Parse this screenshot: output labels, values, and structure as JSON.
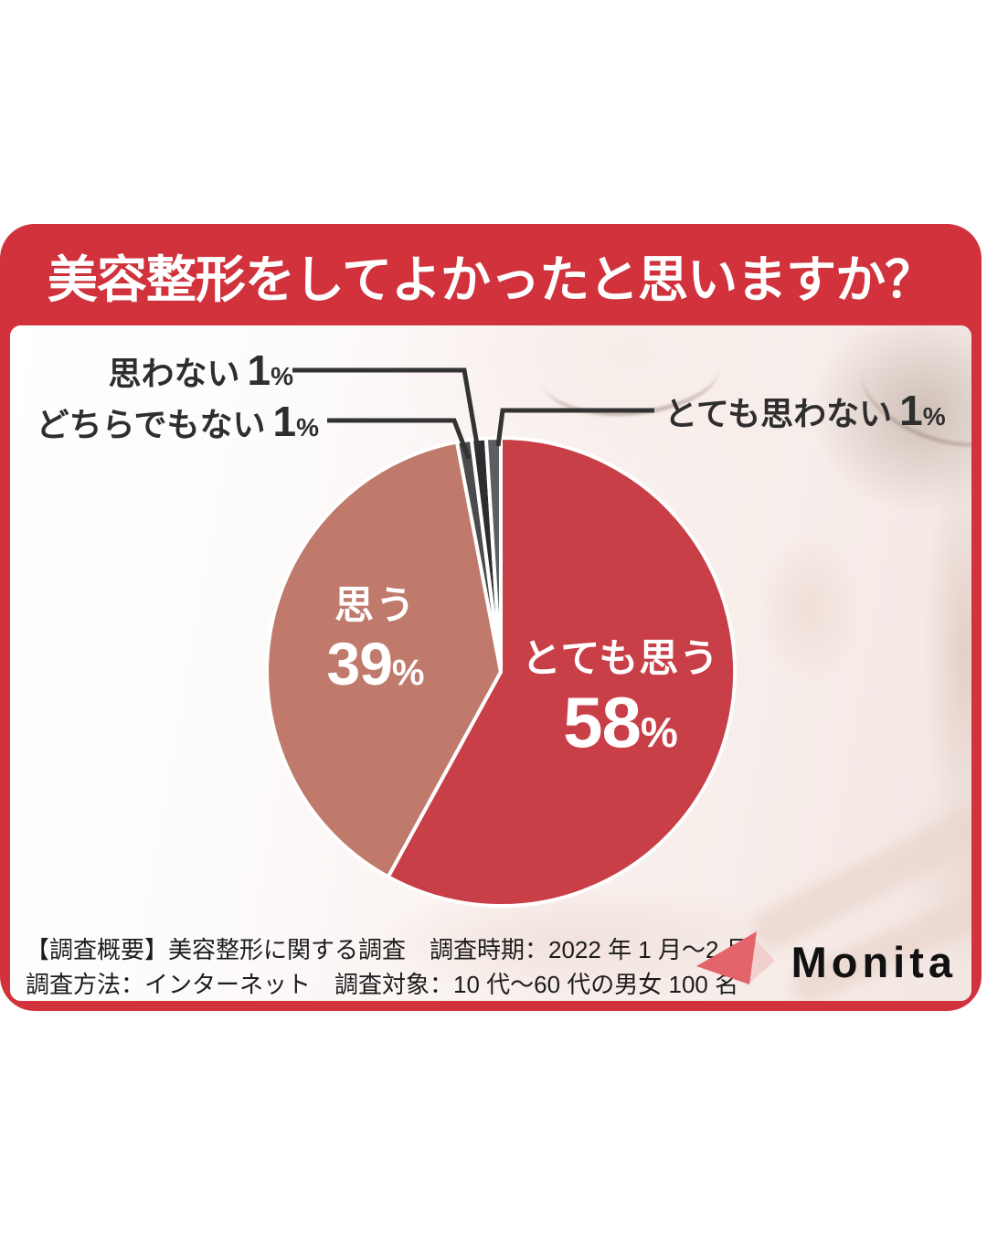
{
  "page_title": "美容整形をしてよかったと思いますか？",
  "chart_data": {
    "type": "pie",
    "title": "美容整形をしてよかったと思いますか？",
    "unit": "%",
    "rotation": "clockwise-from-top",
    "percent_sign": "%",
    "slices": [
      {
        "label": "とても思う",
        "value": 58,
        "color": "#c93f47",
        "label_style": "on-slice-white"
      },
      {
        "label": "思う",
        "value": 39,
        "color": "#bf7a6b",
        "label_style": "on-slice-white"
      },
      {
        "label": "どちらでもない",
        "value": 1,
        "color": "#4b4b4e",
        "label_style": "callout"
      },
      {
        "label": "思わない",
        "value": 1,
        "color": "#2d2d30",
        "label_style": "callout"
      },
      {
        "label": "とても思わない",
        "value": 1,
        "color": "#5e5e62",
        "label_style": "callout"
      }
    ]
  },
  "footer": {
    "line1": "【調査概要】美容整形に関する調査　調査時期：2022 年 1 月〜2 月",
    "line2": "調査方法：インターネット　調査対象：10 代〜60 代の男女 100 名"
  },
  "logo": {
    "text": "Monita"
  },
  "colors": {
    "card_red": "#d1323c",
    "panel_bg": "#fdfbfb",
    "pie_red": "#c93f47",
    "pie_rose": "#bf7a6b",
    "slice_gray_mid": "#4b4b4e",
    "slice_gray_dark": "#2d2d30",
    "slice_gray_light": "#5e5e62",
    "callout_text": "#2e2e2e",
    "leader_line": "#333333",
    "footer_text": "#1c1c1c",
    "logo_text": "#111111",
    "logo_triangle": "#e4646c",
    "logo_triangle_light": "#f1d0cd"
  }
}
